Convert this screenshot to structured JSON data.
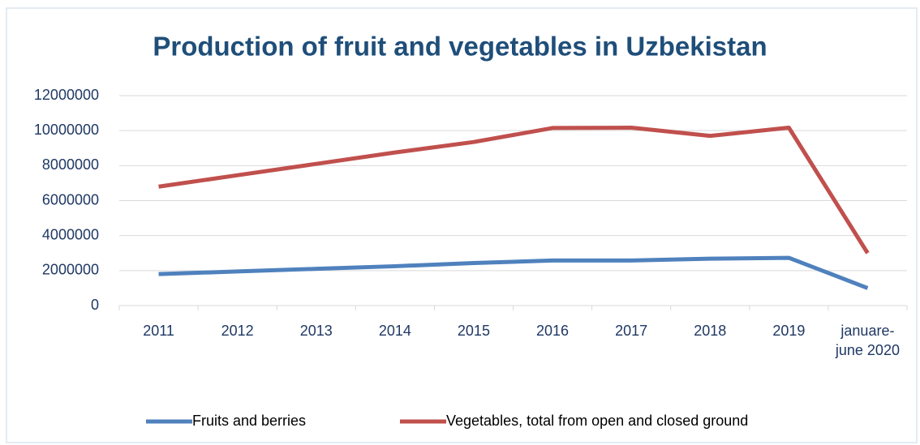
{
  "chart_data": {
    "type": "line",
    "title": "Production of fruit and vegetables in Uzbekistan",
    "categories": [
      "2011",
      "2012",
      "2013",
      "2014",
      "2015",
      "2016",
      "2017",
      "2018",
      "2019",
      "januare-june 2020"
    ],
    "series": [
      {
        "name": "Fruits and berries",
        "color": "#4f81bd",
        "values": [
          1800000,
          1950000,
          2100000,
          2250000,
          2430000,
          2580000,
          2580000,
          2680000,
          2730000,
          1000000
        ]
      },
      {
        "name": "Vegetables, total from open and closed ground",
        "color": "#c0504d",
        "values": [
          6800000,
          7450000,
          8100000,
          8750000,
          9350000,
          10150000,
          10170000,
          9700000,
          10170000,
          3000000
        ]
      }
    ],
    "ylim": [
      0,
      12000000
    ],
    "yticks": [
      0,
      2000000,
      4000000,
      6000000,
      8000000,
      10000000,
      12000000
    ],
    "grid": true,
    "legend": "bottom"
  }
}
